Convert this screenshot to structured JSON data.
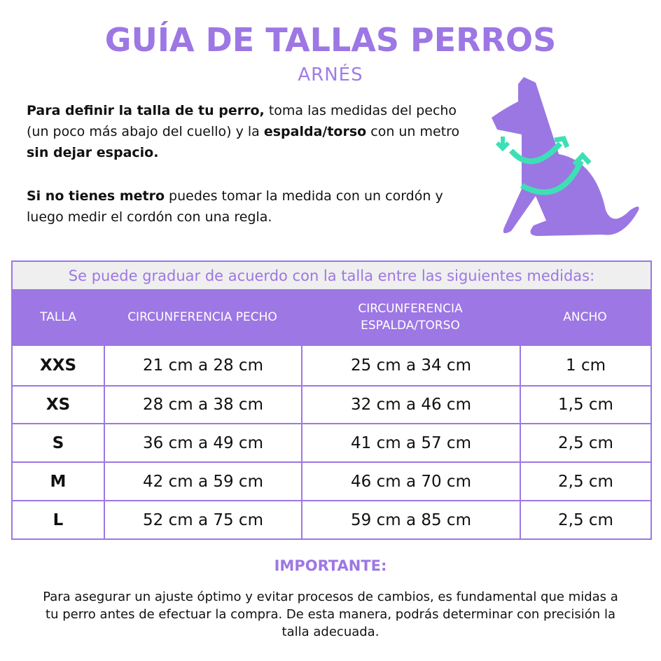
{
  "title": "GUÍA DE TALLAS PERROS",
  "subtitle": "ARNÉS",
  "intro": {
    "p1": [
      {
        "t": "Para definir la talla de  tu perro,",
        "b": true
      },
      {
        "t": " toma las medidas del pecho (un poco más abajo del cuello) y la ",
        "b": false
      },
      {
        "t": "espalda/torso",
        "b": true
      },
      {
        "t": " con un metro ",
        "b": false
      },
      {
        "t": "sin dejar espacio.",
        "b": true
      }
    ],
    "p2": [
      {
        "t": "Si no tienes metro",
        "b": true
      },
      {
        "t": " puedes tomar la medida con un cordón y luego medir el cordón con una regla.",
        "b": false
      }
    ]
  },
  "illustration": {
    "name": "dog-measurement-icon",
    "body_color": "#9b77e3",
    "arrow_color": "#3de0b5"
  },
  "table": {
    "note": "Se puede graduar de acuerdo con la talla entre las siguientes medidas:",
    "headers": [
      "TALLA",
      "CIRCUNFERENCIA PECHO",
      "CIRCUNFERENCIA ESPALDA/TORSO",
      "ANCHO"
    ],
    "rows": [
      [
        "XXS",
        "21 cm a 28 cm",
        "25 cm a 34 cm",
        "1 cm"
      ],
      [
        "XS",
        "28 cm a 38 cm",
        "32 cm a 46 cm",
        "1,5 cm"
      ],
      [
        "S",
        "36 cm a 49 cm",
        "41 cm a 57 cm",
        "2,5 cm"
      ],
      [
        "M",
        "42 cm a 59 cm",
        "46 cm a 70 cm",
        "2,5 cm"
      ],
      [
        "L",
        "52 cm a 75 cm",
        "59 cm a 85 cm",
        "2,5 cm"
      ]
    ]
  },
  "important": {
    "heading": "IMPORTANTE:",
    "text": "Para asegurar un ajuste óptimo y evitar procesos de cambios, es fundamental que midas a tu perro antes de efectuar la compra. De esta manera, podrás determinar con precisión la talla adecuada."
  },
  "colors": {
    "accent": "#9d77e4",
    "band": "#efefef"
  }
}
